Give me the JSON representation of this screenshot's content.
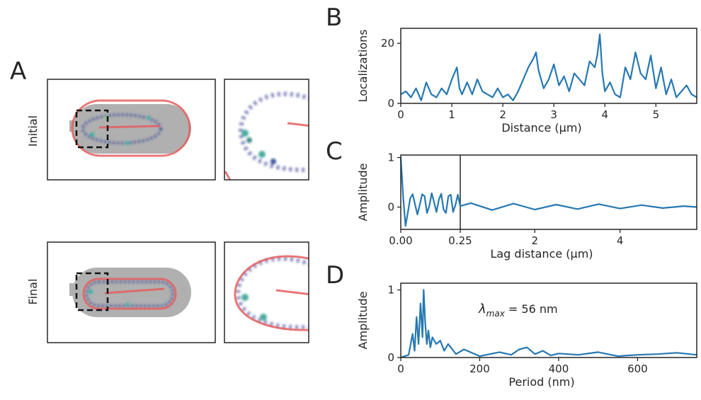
{
  "panels": {
    "A": {
      "letter": "A",
      "row_initial": "Initial",
      "row_final": "Final"
    },
    "B": {
      "letter": "B"
    },
    "C": {
      "letter": "C"
    },
    "D": {
      "letter": "D",
      "annotation_symbol": "λ",
      "annotation_sub": "max",
      "annotation_value": " = 56 nm"
    }
  },
  "colors": {
    "series": "#2678b2",
    "outline": "#e46060",
    "cell": "#b0b0b0",
    "dots": "#1f3a8a"
  },
  "chart_data": [
    {
      "id": "B",
      "type": "line",
      "xlabel": "Distance (μm)",
      "ylabel": "Localizations",
      "xlim": [
        0,
        5.8
      ],
      "ylim": [
        0,
        25
      ],
      "xticks": [
        0,
        1,
        2,
        3,
        4,
        5
      ],
      "yticks": [
        0,
        20
      ],
      "x": [
        0,
        0.1,
        0.2,
        0.3,
        0.4,
        0.5,
        0.6,
        0.7,
        0.8,
        0.9,
        1.0,
        1.1,
        1.15,
        1.2,
        1.3,
        1.4,
        1.5,
        1.6,
        1.7,
        1.8,
        1.9,
        2.0,
        2.1,
        2.2,
        2.3,
        2.4,
        2.5,
        2.6,
        2.65,
        2.7,
        2.8,
        2.9,
        3.0,
        3.1,
        3.2,
        3.3,
        3.4,
        3.5,
        3.6,
        3.7,
        3.8,
        3.85,
        3.9,
        3.95,
        4.0,
        4.1,
        4.2,
        4.3,
        4.4,
        4.5,
        4.6,
        4.7,
        4.8,
        4.9,
        5.0,
        5.1,
        5.2,
        5.3,
        5.4,
        5.5,
        5.6,
        5.7,
        5.8
      ],
      "y": [
        3,
        4,
        2,
        5,
        1,
        7,
        3,
        2,
        5,
        3,
        8,
        12,
        5,
        3,
        7,
        3,
        8,
        4,
        3,
        2,
        5,
        2,
        3,
        1,
        4,
        8,
        12,
        15,
        17,
        11,
        5,
        8,
        13,
        6,
        9,
        4,
        10,
        8,
        6,
        14,
        12,
        16,
        23,
        10,
        4,
        7,
        3,
        2,
        12,
        8,
        17,
        10,
        8,
        16,
        5,
        12,
        3,
        8,
        2,
        4,
        6,
        3,
        2
      ]
    },
    {
      "id": "C",
      "type": "line",
      "xlabel": "Lag distance (μm)",
      "ylabel": "Amplitude",
      "xlim": [
        0,
        5.8
      ],
      "ylim": [
        -0.45,
        1.05
      ],
      "xticks_left": [
        0.0,
        0.25
      ],
      "xtick_labels_left": [
        "0.00",
        "0.25"
      ],
      "xticks_right": [
        2,
        4
      ],
      "split_at": 0.25,
      "yticks": [
        0,
        1
      ],
      "x": [
        0,
        0.01,
        0.02,
        0.03,
        0.04,
        0.05,
        0.06,
        0.07,
        0.08,
        0.09,
        0.1,
        0.11,
        0.12,
        0.13,
        0.14,
        0.15,
        0.16,
        0.17,
        0.18,
        0.19,
        0.2,
        0.21,
        0.22,
        0.23,
        0.24,
        0.25,
        0.5,
        1,
        1.5,
        2,
        2.5,
        3,
        3.5,
        4,
        4.5,
        5,
        5.5,
        5.8
      ],
      "y": [
        1,
        0.2,
        -0.38,
        -0.1,
        0.18,
        0.26,
        0.05,
        -0.15,
        0.05,
        0.26,
        0.22,
        -0.12,
        0.02,
        0.28,
        0.1,
        -0.1,
        0.15,
        0.27,
        -0.05,
        -0.12,
        0.22,
        0.25,
        -0.1,
        0.05,
        0.25,
        0.02,
        0.08,
        -0.06,
        0.07,
        -0.05,
        0.05,
        -0.04,
        0.06,
        -0.03,
        0.04,
        -0.02,
        0.02,
        0.0
      ]
    },
    {
      "id": "D",
      "type": "line",
      "xlabel": "Period (nm)",
      "ylabel": "Amplitude",
      "xlim": [
        0,
        750
      ],
      "ylim": [
        0,
        1.1
      ],
      "xticks": [
        0,
        200,
        400,
        600
      ],
      "yticks": [
        0,
        1
      ],
      "x": [
        0,
        20,
        30,
        35,
        40,
        45,
        50,
        55,
        58,
        62,
        66,
        70,
        75,
        80,
        90,
        100,
        110,
        120,
        140,
        160,
        200,
        250,
        280,
        300,
        320,
        340,
        360,
        380,
        400,
        450,
        500,
        550,
        600,
        650,
        700,
        750
      ],
      "y": [
        0,
        0.04,
        0.35,
        0.1,
        0.6,
        0.2,
        0.8,
        0.3,
        1.0,
        0.5,
        0.2,
        0.4,
        0.15,
        0.3,
        0.2,
        0.25,
        0.1,
        0.2,
        0.05,
        0.12,
        0.02,
        0.08,
        0.04,
        0.12,
        0.15,
        0.05,
        0.1,
        0.03,
        0.06,
        0.04,
        0.08,
        0.02,
        0.04,
        0.05,
        0.07,
        0.04
      ]
    }
  ]
}
